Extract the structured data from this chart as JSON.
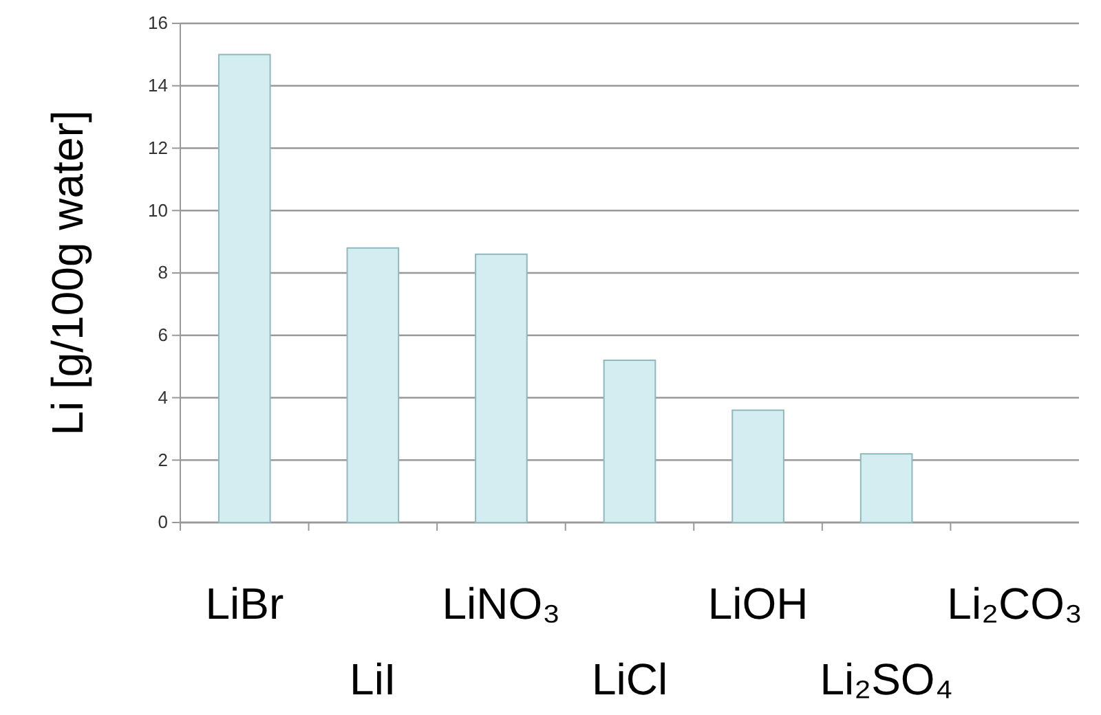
{
  "chart_data": {
    "type": "bar",
    "ylabel": "Li [g/100g water]",
    "categories": [
      "LiBr",
      "LiI",
      "LiNO₃",
      "LiCl",
      "LiOH",
      "Li₂SO₄",
      "Li₂CO₃"
    ],
    "values": [
      15.0,
      8.8,
      8.6,
      5.2,
      3.6,
      2.2,
      0
    ],
    "color": "#d3edf1",
    "ylim": [
      0,
      16
    ],
    "yticks": [
      0,
      2,
      4,
      6,
      8,
      10,
      12,
      14,
      16
    ],
    "grid": "y"
  }
}
